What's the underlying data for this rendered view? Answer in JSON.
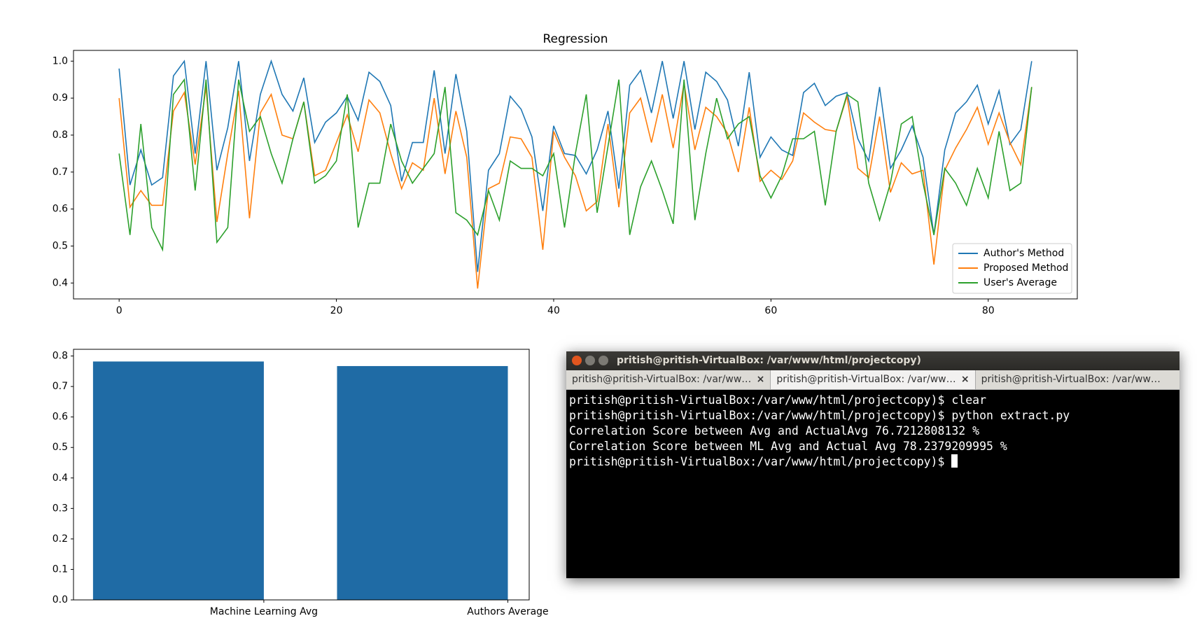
{
  "chart_data": [
    {
      "type": "line",
      "title": "Regression",
      "x": [
        0,
        1,
        2,
        3,
        4,
        5,
        6,
        7,
        8,
        9,
        10,
        11,
        12,
        13,
        14,
        15,
        16,
        17,
        18,
        19,
        20,
        21,
        22,
        23,
        24,
        25,
        26,
        27,
        28,
        29,
        30,
        31,
        32,
        33,
        34,
        35,
        36,
        37,
        38,
        39,
        40,
        41,
        42,
        43,
        44,
        45,
        46,
        47,
        48,
        49,
        50,
        51,
        52,
        53,
        54,
        55,
        56,
        57,
        58,
        59,
        60,
        61,
        62,
        63,
        64,
        65,
        66,
        67,
        68,
        69,
        70,
        71,
        72,
        73,
        74,
        75,
        76,
        77,
        78,
        79,
        80,
        81,
        82,
        83,
        84
      ],
      "series": [
        {
          "name": "Author's Method",
          "color": "#1f77b4",
          "values": [
            0.98,
            0.665,
            0.76,
            0.665,
            0.685,
            0.96,
            1.0,
            0.75,
            1.0,
            0.705,
            0.82,
            1.0,
            0.73,
            0.91,
            1.0,
            0.91,
            0.865,
            0.955,
            0.78,
            0.835,
            0.86,
            0.905,
            0.84,
            0.97,
            0.945,
            0.88,
            0.675,
            0.78,
            0.78,
            0.975,
            0.75,
            0.965,
            0.81,
            0.43,
            0.705,
            0.75,
            0.905,
            0.87,
            0.795,
            0.595,
            0.825,
            0.75,
            0.745,
            0.695,
            0.76,
            0.865,
            0.655,
            0.935,
            0.975,
            0.86,
            1.0,
            0.845,
            1.0,
            0.815,
            0.97,
            0.945,
            0.895,
            0.77,
            0.97,
            0.74,
            0.795,
            0.76,
            0.745,
            0.915,
            0.94,
            0.88,
            0.905,
            0.915,
            0.79,
            0.73,
            0.93,
            0.71,
            0.76,
            0.825,
            0.74,
            0.53,
            0.76,
            0.86,
            0.89,
            0.935,
            0.83,
            0.92,
            0.775,
            0.815,
            1.0
          ]
        },
        {
          "name": "Proposed Method",
          "color": "#ff7f0e",
          "values": [
            0.9,
            0.605,
            0.65,
            0.61,
            0.61,
            0.865,
            0.915,
            0.72,
            0.93,
            0.565,
            0.75,
            0.92,
            0.575,
            0.86,
            0.91,
            0.8,
            0.79,
            0.89,
            0.69,
            0.705,
            0.78,
            0.855,
            0.755,
            0.895,
            0.86,
            0.75,
            0.655,
            0.725,
            0.705,
            0.9,
            0.695,
            0.865,
            0.74,
            0.385,
            0.655,
            0.67,
            0.795,
            0.79,
            0.74,
            0.49,
            0.81,
            0.74,
            0.69,
            0.595,
            0.62,
            0.83,
            0.605,
            0.86,
            0.9,
            0.78,
            0.91,
            0.765,
            0.94,
            0.76,
            0.875,
            0.85,
            0.805,
            0.7,
            0.875,
            0.675,
            0.705,
            0.68,
            0.73,
            0.86,
            0.835,
            0.815,
            0.81,
            0.905,
            0.71,
            0.685,
            0.85,
            0.645,
            0.725,
            0.695,
            0.705,
            0.45,
            0.705,
            0.765,
            0.815,
            0.875,
            0.775,
            0.86,
            0.78,
            0.72,
            0.93
          ]
        },
        {
          "name": "User's Average",
          "color": "#2ca02c",
          "values": [
            0.75,
            0.53,
            0.83,
            0.55,
            0.49,
            0.91,
            0.95,
            0.65,
            0.95,
            0.51,
            0.55,
            0.95,
            0.81,
            0.85,
            0.75,
            0.67,
            0.79,
            0.89,
            0.67,
            0.69,
            0.73,
            0.91,
            0.55,
            0.67,
            0.67,
            0.83,
            0.73,
            0.67,
            0.71,
            0.75,
            0.93,
            0.59,
            0.57,
            0.53,
            0.65,
            0.57,
            0.73,
            0.71,
            0.71,
            0.69,
            0.75,
            0.55,
            0.75,
            0.91,
            0.59,
            0.77,
            0.95,
            0.53,
            0.66,
            0.73,
            0.65,
            0.56,
            0.95,
            0.57,
            0.75,
            0.9,
            0.79,
            0.83,
            0.85,
            0.69,
            0.63,
            0.69,
            0.79,
            0.79,
            0.81,
            0.61,
            0.81,
            0.91,
            0.89,
            0.67,
            0.57,
            0.67,
            0.83,
            0.85,
            0.67,
            0.53,
            0.71,
            0.67,
            0.61,
            0.71,
            0.63,
            0.81,
            0.65,
            0.67,
            0.93
          ]
        }
      ],
      "xlim": [
        -4.2,
        88.2
      ],
      "xticks": [
        0,
        20,
        40,
        60,
        80
      ],
      "ylim": [
        0.357,
        1.029
      ],
      "yticks": [
        0.4,
        0.5,
        0.6,
        0.7,
        0.8,
        0.9,
        {
          "value": 1,
          "label": "1.0"
        }
      ],
      "legend": "lower right"
    },
    {
      "type": "bar",
      "categories": [
        "Machine Learning Avg",
        "Authors Average"
      ],
      "values": [
        0.782,
        0.767
      ],
      "color": "#1f6ba5",
      "ylim": [
        0,
        0.822
      ],
      "yticks": [
        {
          "value": 0,
          "label": "0.0"
        },
        0.1,
        0.2,
        0.3,
        0.4,
        0.5,
        0.6,
        0.7,
        0.8
      ]
    }
  ],
  "terminal": {
    "window_title": "pritish@pritish-VirtualBox: /var/www/html/projectcopy)",
    "tabs": [
      "pritish@pritish-VirtualBox: /var/ww…",
      "pritish@pritish-VirtualBox: /var/ww…",
      "pritish@pritish-VirtualBox: /var/ww…"
    ],
    "lines": [
      "pritish@pritish-VirtualBox:/var/www/html/projectcopy)$ clear",
      "pritish@pritish-VirtualBox:/var/www/html/projectcopy)$ python extract.py",
      "Correlation Score between Avg and ActualAvg 76.7212808132 %",
      "Correlation Score between ML Avg and Actual Avg 78.2379209995 %",
      "pritish@pritish-VirtualBox:/var/www/html/projectcopy)$ "
    ]
  }
}
